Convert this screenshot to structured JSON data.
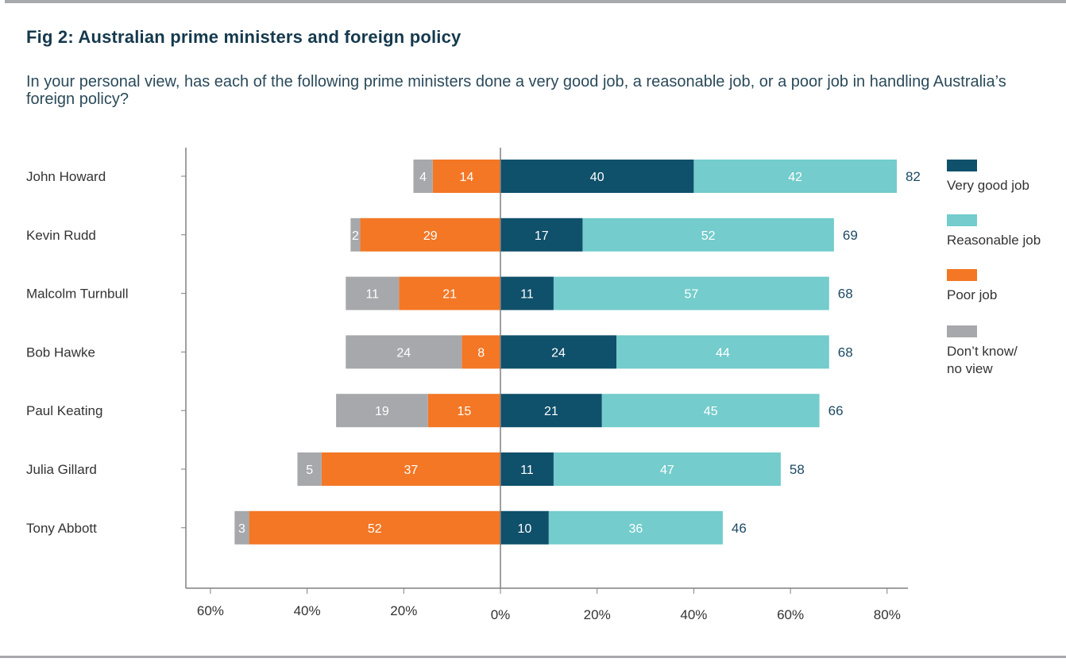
{
  "title": "Fig 2: Australian prime ministers and foreign policy",
  "subtitle": "In your personal view, has each of the following prime ministers done a very good job, a reasonable job, or a poor job in handling Australia’s foreign policy?",
  "colors": {
    "very_good": "#0f506b",
    "reasonable": "#74cccc",
    "poor": "#f37725",
    "dont_know": "#a7a8ab",
    "axis": "#808080",
    "total_text": "#1c4a63"
  },
  "chart_data": {
    "type": "bar",
    "orientation": "horizontal",
    "stacked": "diverging",
    "title": "Fig 2: Australian prime ministers and foreign policy",
    "subtitle": "In your personal view, has each of the following prime ministers done a very good job, a reasonable job, or a poor job in handling Australia’s foreign policy?",
    "xlabel": "",
    "ylabel": "",
    "xlim": [
      -60,
      80
    ],
    "x_ticks": [
      -60,
      -40,
      -20,
      0,
      20,
      40,
      60,
      80
    ],
    "x_tick_labels": [
      "60%",
      "40%",
      "20%",
      "0%",
      "20%",
      "40%",
      "60%",
      "80%"
    ],
    "grid": false,
    "legend_position": "right",
    "categories": [
      "John Howard",
      "Kevin Rudd",
      "Malcolm Turnbull",
      "Bob Hawke",
      "Paul Keating",
      "Julia Gillard",
      "Tony Abbott"
    ],
    "series": [
      {
        "name": "Very good job",
        "key": "very_good",
        "side": "positive",
        "values": [
          40,
          17,
          11,
          24,
          21,
          11,
          10
        ]
      },
      {
        "name": "Reasonable job",
        "key": "reasonable",
        "side": "positive",
        "values": [
          42,
          52,
          57,
          44,
          45,
          47,
          36
        ]
      },
      {
        "name": "Poor job",
        "key": "poor",
        "side": "negative",
        "values": [
          14,
          29,
          21,
          8,
          15,
          37,
          52
        ]
      },
      {
        "name": "Don’t know/ no view",
        "key": "dont_know",
        "side": "negative",
        "values": [
          4,
          2,
          11,
          24,
          19,
          5,
          3
        ]
      }
    ],
    "totals": [
      82,
      69,
      68,
      68,
      66,
      58,
      46
    ],
    "legend": [
      {
        "label_lines": [
          "Very good job"
        ],
        "key": "very_good"
      },
      {
        "label_lines": [
          "Reasonable job"
        ],
        "key": "reasonable"
      },
      {
        "label_lines": [
          "Poor job"
        ],
        "key": "poor"
      },
      {
        "label_lines": [
          "Don’t know/",
          "no view"
        ],
        "key": "dont_know"
      }
    ]
  }
}
